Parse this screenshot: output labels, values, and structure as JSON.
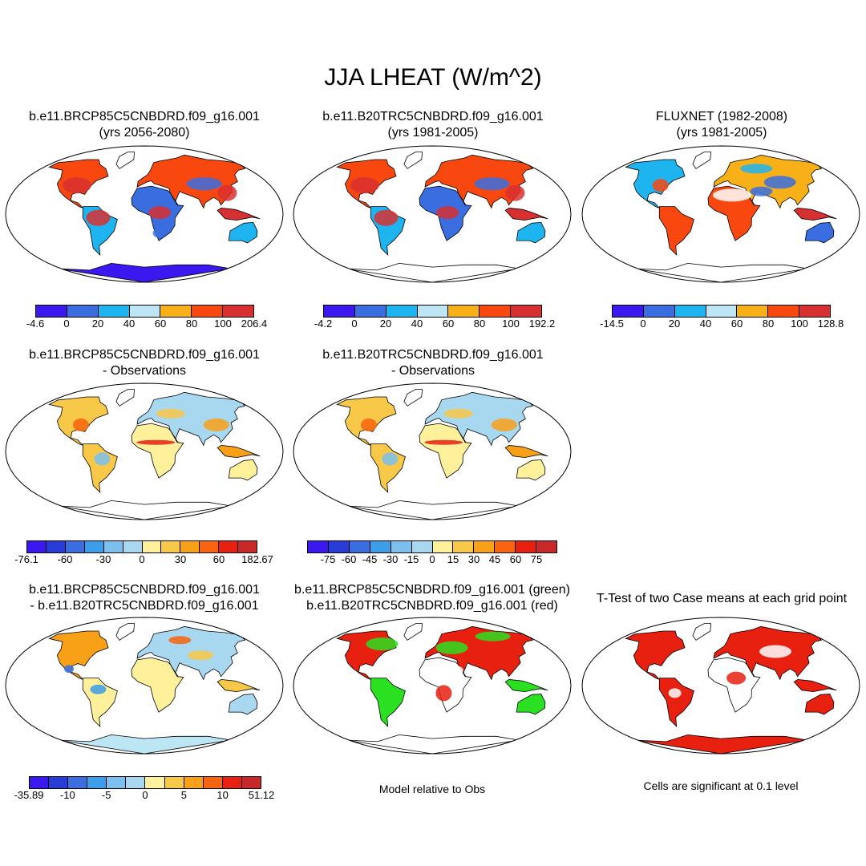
{
  "main_title": "JJA LHEAT (W/m^2)",
  "panels": [
    {
      "id": "p1",
      "title1": "b.e11.BRCP85C5CNBDRD.f09_g16.001",
      "title2": "(yrs 2056-2080)",
      "style": "model_future"
    },
    {
      "id": "p2",
      "title1": "b.e11.B20TRC5CNBDRD.f09_g16.001",
      "title2": "(yrs 1981-2005)",
      "style": "model_hist"
    },
    {
      "id": "p3",
      "title1": "FLUXNET (1982-2008)",
      "title2": "(yrs 1981-2005)",
      "style": "obs"
    },
    {
      "id": "p4",
      "title1": "b.e11.BRCP85C5CNBDRD.f09_g16.001",
      "title2": "- Observations",
      "style": "diff_obs"
    },
    {
      "id": "p5",
      "title1": "b.e11.B20TRC5CNBDRD.f09_g16.001",
      "title2": "- Observations",
      "style": "diff_obs"
    },
    {
      "id": "p6",
      "title1": "b.e11.BRCP85C5CNBDRD.f09_g16.001",
      "title2": "- b.e11.B20TRC5CNBDRD.f09_g16.001",
      "style": "diff_case"
    },
    {
      "id": "p7",
      "title1": "b.e11.BRCP85C5CNBDRD.f09_g16.001 (green)",
      "title2": "b.e11.B20TRC5CNBDRD.f09_g16.001 (red)",
      "style": "compare"
    },
    {
      "id": "p8",
      "title1": "T-Test of two Case means at each grid point",
      "title2": "",
      "style": "ttest"
    }
  ],
  "colorbars": [
    {
      "id": "cb1",
      "colors": [
        "#3c18f0",
        "#3a6ee0",
        "#1eb4f0",
        "#bde6f5",
        "#f8b018",
        "#f84810",
        "#d83030"
      ],
      "labels": [
        "-4.6",
        "0",
        "20",
        "40",
        "60",
        "80",
        "100",
        "206.4"
      ]
    },
    {
      "id": "cb2",
      "colors": [
        "#3c18f0",
        "#3a6ee0",
        "#1eb4f0",
        "#bde6f5",
        "#f8b018",
        "#f84810",
        "#d83030"
      ],
      "labels": [
        "-4.2",
        "0",
        "20",
        "40",
        "60",
        "80",
        "100",
        "192.2"
      ]
    },
    {
      "id": "cb3",
      "colors": [
        "#3c18f0",
        "#3a6ee0",
        "#1eb4f0",
        "#bde6f5",
        "#f8b018",
        "#f84810",
        "#d83030"
      ],
      "labels": [
        "-14.5",
        "0",
        "20",
        "40",
        "60",
        "80",
        "100",
        "128.8"
      ]
    },
    {
      "id": "cb4",
      "colors": [
        "#3c18f0",
        "#2a3cd8",
        "#3a6ee0",
        "#3c9ee8",
        "#7cc0f0",
        "#a8d8f0",
        "#fff09c",
        "#f8c848",
        "#f8a018",
        "#f86410",
        "#e82010",
        "#c82828"
      ],
      "labels": [
        "-76.1",
        "",
        "-60",
        "",
        "-30",
        "",
        "0",
        "",
        "30",
        "",
        "60",
        "",
        "182.67"
      ]
    },
    {
      "id": "cb5",
      "colors": [
        "#3c18f0",
        "#2a3cd8",
        "#3a6ee0",
        "#3c9ee8",
        "#7cc0f0",
        "#a8d8f0",
        "#fff09c",
        "#f8c848",
        "#f8a018",
        "#f86410",
        "#e82010",
        "#c82828"
      ],
      "labels": [
        "",
        "-75",
        "-60",
        "-45",
        "-30",
        "-15",
        "0",
        "15",
        "30",
        "45",
        "60",
        "75",
        ""
      ]
    },
    {
      "id": "cb6",
      "colors": [
        "#3c18f0",
        "#2a3cd8",
        "#3a6ee0",
        "#3c9ee8",
        "#7cc0f0",
        "#a8d8f0",
        "#fff09c",
        "#f8c848",
        "#f8a018",
        "#f86410",
        "#e82010",
        "#c82828"
      ],
      "labels": [
        "-35.89",
        "",
        "-10",
        "",
        "-5",
        "",
        "0",
        "",
        "5",
        "",
        "10",
        "",
        "51.12"
      ]
    }
  ],
  "notes": {
    "model_obs": "Model relative to Obs",
    "significance": "Cells are significant at 0.1 level"
  }
}
